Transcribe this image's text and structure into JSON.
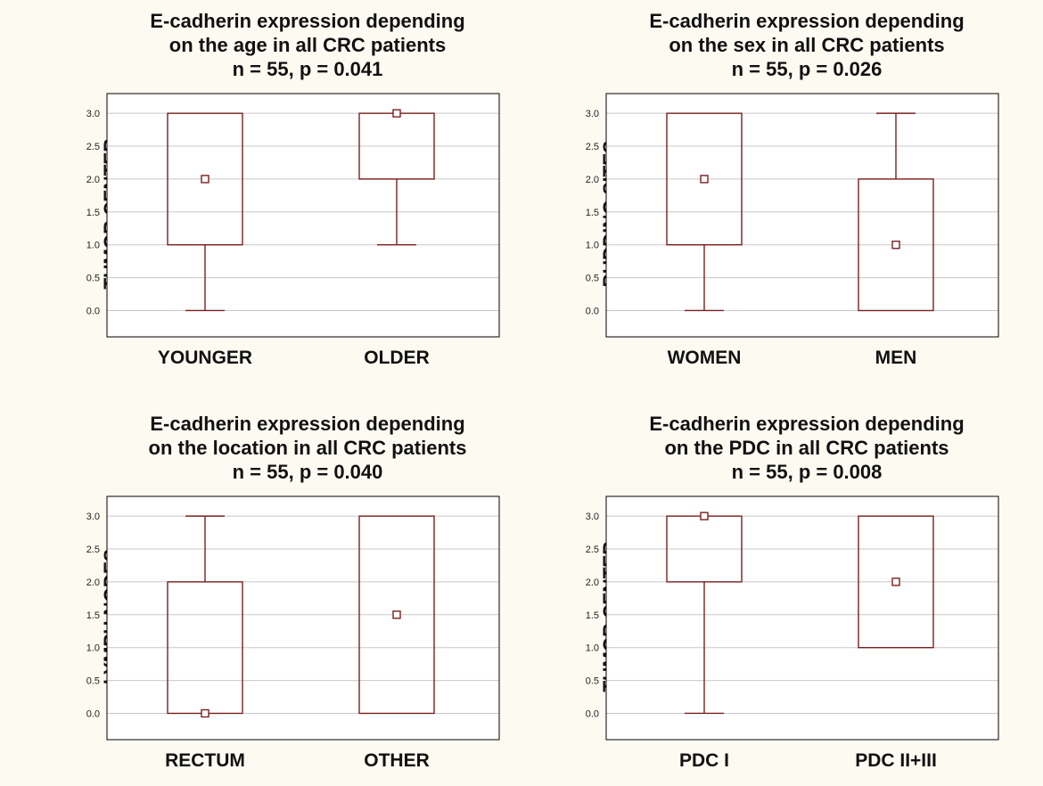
{
  "colors": {
    "background": "#fdfaf1",
    "box_stroke": "#7a1f1f",
    "grid": "#c8c8c8",
    "frame": "#000000"
  },
  "chart_data": [
    {
      "type": "box",
      "title_lines": [
        "E-cadherin expression depending",
        "on the age in all CRC patients",
        "n = 55, p = 0.041"
      ],
      "ylabel": "TUMOR CENTER",
      "xlabel": "",
      "ylim": [
        -0.4,
        3.3
      ],
      "yticks": [
        "0.0",
        "0.5",
        "1.0",
        "1.5",
        "2.0",
        "2.5",
        "3.0"
      ],
      "grid": true,
      "categories": [
        "YOUNGER",
        "OLDER"
      ],
      "boxes": [
        {
          "min": 0.0,
          "q1": 1.0,
          "median": 2.0,
          "q3": 3.0,
          "max": 3.0
        },
        {
          "min": 1.0,
          "q1": 2.0,
          "median": 3.0,
          "q3": 3.0,
          "max": 3.0
        }
      ]
    },
    {
      "type": "box",
      "title_lines": [
        "E-cadherin expression depending",
        "on the sex in all CRC patients",
        "n = 55, p = 0.026"
      ],
      "ylabel": "BUDDING SITES",
      "xlabel": "",
      "ylim": [
        -0.4,
        3.3
      ],
      "yticks": [
        "0.0",
        "0.5",
        "1.0",
        "1.5",
        "2.0",
        "2.5",
        "3.0"
      ],
      "grid": true,
      "categories": [
        "WOMEN",
        "MEN"
      ],
      "boxes": [
        {
          "min": 0.0,
          "q1": 1.0,
          "median": 2.0,
          "q3": 3.0,
          "max": 3.0
        },
        {
          "min": 0.0,
          "q1": 0.0,
          "median": 1.0,
          "q3": 2.0,
          "max": 3.0
        }
      ]
    },
    {
      "type": "box",
      "title_lines": [
        "E-cadherin expression depending",
        "on the location in all CRC patients",
        "n = 55, p = 0.040"
      ],
      "ylabel": "LYMPH NODES",
      "xlabel": "",
      "ylim": [
        -0.4,
        3.3
      ],
      "yticks": [
        "0.0",
        "0.5",
        "1.0",
        "1.5",
        "2.0",
        "2.5",
        "3.0"
      ],
      "grid": true,
      "categories": [
        "RECTUM",
        "OTHER"
      ],
      "boxes": [
        {
          "min": 0.0,
          "q1": 0.0,
          "median": 0.0,
          "q3": 2.0,
          "max": 3.0
        },
        {
          "min": 0.0,
          "q1": 0.0,
          "median": 1.5,
          "q3": 3.0,
          "max": 3.0
        }
      ]
    },
    {
      "type": "box",
      "title_lines": [
        "E-cadherin expression depending",
        "on the PDC in all CRC patients",
        "n = 55, p = 0.008"
      ],
      "ylabel": "TUMOR CENTER",
      "xlabel": "",
      "ylim": [
        -0.4,
        3.3
      ],
      "yticks": [
        "0.0",
        "0.5",
        "1.0",
        "1.5",
        "2.0",
        "2.5",
        "3.0"
      ],
      "grid": true,
      "categories": [
        "PDC I",
        "PDC II+III"
      ],
      "boxes": [
        {
          "min": 0.0,
          "q1": 2.0,
          "median": 3.0,
          "q3": 3.0,
          "max": 3.0
        },
        {
          "min": 1.0,
          "q1": 1.0,
          "median": 2.0,
          "q3": 3.0,
          "max": 3.0
        }
      ]
    }
  ]
}
